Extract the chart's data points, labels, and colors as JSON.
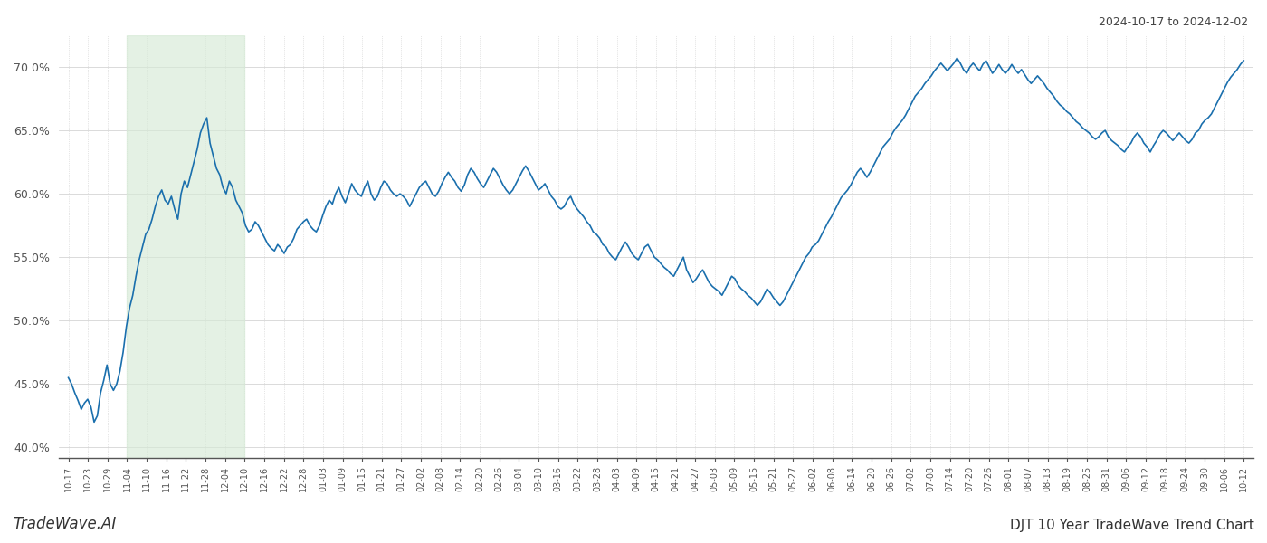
{
  "title_top_right": "2024-10-17 to 2024-12-02",
  "title_bottom": "DJT 10 Year TradeWave Trend Chart",
  "watermark": "TradeWave.AI",
  "line_color": "#1a6fad",
  "line_width": 1.2,
  "highlight_color": "#d6ead6",
  "highlight_alpha": 0.65,
  "background_color": "#ffffff",
  "grid_color": "#cccccc",
  "ylim": [
    0.392,
    0.725
  ],
  "yticks": [
    0.4,
    0.45,
    0.5,
    0.55,
    0.6,
    0.65,
    0.7
  ],
  "x_labels": [
    "10-17",
    "10-23",
    "10-29",
    "11-04",
    "11-10",
    "11-16",
    "11-22",
    "11-28",
    "12-04",
    "12-10",
    "12-16",
    "12-22",
    "12-28",
    "01-03",
    "01-09",
    "01-15",
    "01-21",
    "01-27",
    "02-02",
    "02-08",
    "02-14",
    "02-20",
    "02-26",
    "03-04",
    "03-10",
    "03-16",
    "03-22",
    "03-28",
    "04-03",
    "04-09",
    "04-15",
    "04-21",
    "04-27",
    "05-03",
    "05-09",
    "05-15",
    "05-21",
    "05-27",
    "06-02",
    "06-08",
    "06-14",
    "06-20",
    "06-26",
    "07-02",
    "07-08",
    "07-14",
    "07-20",
    "07-26",
    "08-01",
    "08-07",
    "08-13",
    "08-19",
    "08-25",
    "08-31",
    "09-06",
    "09-12",
    "09-18",
    "09-24",
    "09-30",
    "10-06",
    "10-12"
  ],
  "highlight_label_start": "11-04",
  "highlight_label_end": "12-10",
  "y_values": [
    0.455,
    0.45,
    0.443,
    0.437,
    0.43,
    0.435,
    0.438,
    0.432,
    0.42,
    0.425,
    0.443,
    0.453,
    0.465,
    0.45,
    0.445,
    0.45,
    0.46,
    0.475,
    0.495,
    0.51,
    0.52,
    0.535,
    0.548,
    0.558,
    0.568,
    0.572,
    0.58,
    0.59,
    0.598,
    0.603,
    0.595,
    0.592,
    0.598,
    0.588,
    0.58,
    0.6,
    0.61,
    0.605,
    0.615,
    0.625,
    0.635,
    0.648,
    0.655,
    0.66,
    0.64,
    0.63,
    0.62,
    0.615,
    0.605,
    0.6,
    0.61,
    0.605,
    0.595,
    0.59,
    0.585,
    0.575,
    0.57,
    0.572,
    0.578,
    0.575,
    0.57,
    0.565,
    0.56,
    0.557,
    0.555,
    0.56,
    0.557,
    0.553,
    0.558,
    0.56,
    0.565,
    0.572,
    0.575,
    0.578,
    0.58,
    0.575,
    0.572,
    0.57,
    0.575,
    0.583,
    0.59,
    0.595,
    0.592,
    0.6,
    0.605,
    0.598,
    0.593,
    0.6,
    0.608,
    0.603,
    0.6,
    0.598,
    0.605,
    0.61,
    0.6,
    0.595,
    0.598,
    0.605,
    0.61,
    0.608,
    0.603,
    0.6,
    0.598,
    0.6,
    0.598,
    0.595,
    0.59,
    0.595,
    0.6,
    0.605,
    0.608,
    0.61,
    0.605,
    0.6,
    0.598,
    0.602,
    0.608,
    0.613,
    0.617,
    0.613,
    0.61,
    0.605,
    0.602,
    0.607,
    0.615,
    0.62,
    0.617,
    0.612,
    0.608,
    0.605,
    0.61,
    0.615,
    0.62,
    0.617,
    0.612,
    0.607,
    0.603,
    0.6,
    0.603,
    0.608,
    0.613,
    0.618,
    0.622,
    0.618,
    0.613,
    0.608,
    0.603,
    0.605,
    0.608,
    0.603,
    0.598,
    0.595,
    0.59,
    0.588,
    0.59,
    0.595,
    0.598,
    0.592,
    0.588,
    0.585,
    0.582,
    0.578,
    0.575,
    0.57,
    0.568,
    0.565,
    0.56,
    0.558,
    0.553,
    0.55,
    0.548,
    0.553,
    0.558,
    0.562,
    0.558,
    0.553,
    0.55,
    0.548,
    0.553,
    0.558,
    0.56,
    0.555,
    0.55,
    0.548,
    0.545,
    0.542,
    0.54,
    0.537,
    0.535,
    0.54,
    0.545,
    0.55,
    0.54,
    0.535,
    0.53,
    0.533,
    0.537,
    0.54,
    0.535,
    0.53,
    0.527,
    0.525,
    0.523,
    0.52,
    0.525,
    0.53,
    0.535,
    0.533,
    0.528,
    0.525,
    0.523,
    0.52,
    0.518,
    0.515,
    0.512,
    0.515,
    0.52,
    0.525,
    0.522,
    0.518,
    0.515,
    0.512,
    0.515,
    0.52,
    0.525,
    0.53,
    0.535,
    0.54,
    0.545,
    0.55,
    0.553,
    0.558,
    0.56,
    0.563,
    0.568,
    0.573,
    0.578,
    0.582,
    0.587,
    0.592,
    0.597,
    0.6,
    0.603,
    0.607,
    0.612,
    0.617,
    0.62,
    0.617,
    0.613,
    0.617,
    0.622,
    0.627,
    0.632,
    0.637,
    0.64,
    0.643,
    0.648,
    0.652,
    0.655,
    0.658,
    0.662,
    0.667,
    0.672,
    0.677,
    0.68,
    0.683,
    0.687,
    0.69,
    0.693,
    0.697,
    0.7,
    0.703,
    0.7,
    0.697,
    0.7,
    0.703,
    0.707,
    0.703,
    0.698,
    0.695,
    0.7,
    0.703,
    0.7,
    0.697,
    0.702,
    0.705,
    0.7,
    0.695,
    0.698,
    0.702,
    0.698,
    0.695,
    0.698,
    0.702,
    0.698,
    0.695,
    0.698,
    0.694,
    0.69,
    0.687,
    0.69,
    0.693,
    0.69,
    0.687,
    0.683,
    0.68,
    0.677,
    0.673,
    0.67,
    0.668,
    0.665,
    0.663,
    0.66,
    0.657,
    0.655,
    0.652,
    0.65,
    0.648,
    0.645,
    0.643,
    0.645,
    0.648,
    0.65,
    0.645,
    0.642,
    0.64,
    0.638,
    0.635,
    0.633,
    0.637,
    0.64,
    0.645,
    0.648,
    0.645,
    0.64,
    0.637,
    0.633,
    0.638,
    0.642,
    0.647,
    0.65,
    0.648,
    0.645,
    0.642,
    0.645,
    0.648,
    0.645,
    0.642,
    0.64,
    0.643,
    0.648,
    0.65,
    0.655,
    0.658,
    0.66,
    0.663,
    0.668,
    0.673,
    0.678,
    0.683,
    0.688,
    0.692,
    0.695,
    0.698,
    0.702,
    0.705
  ]
}
